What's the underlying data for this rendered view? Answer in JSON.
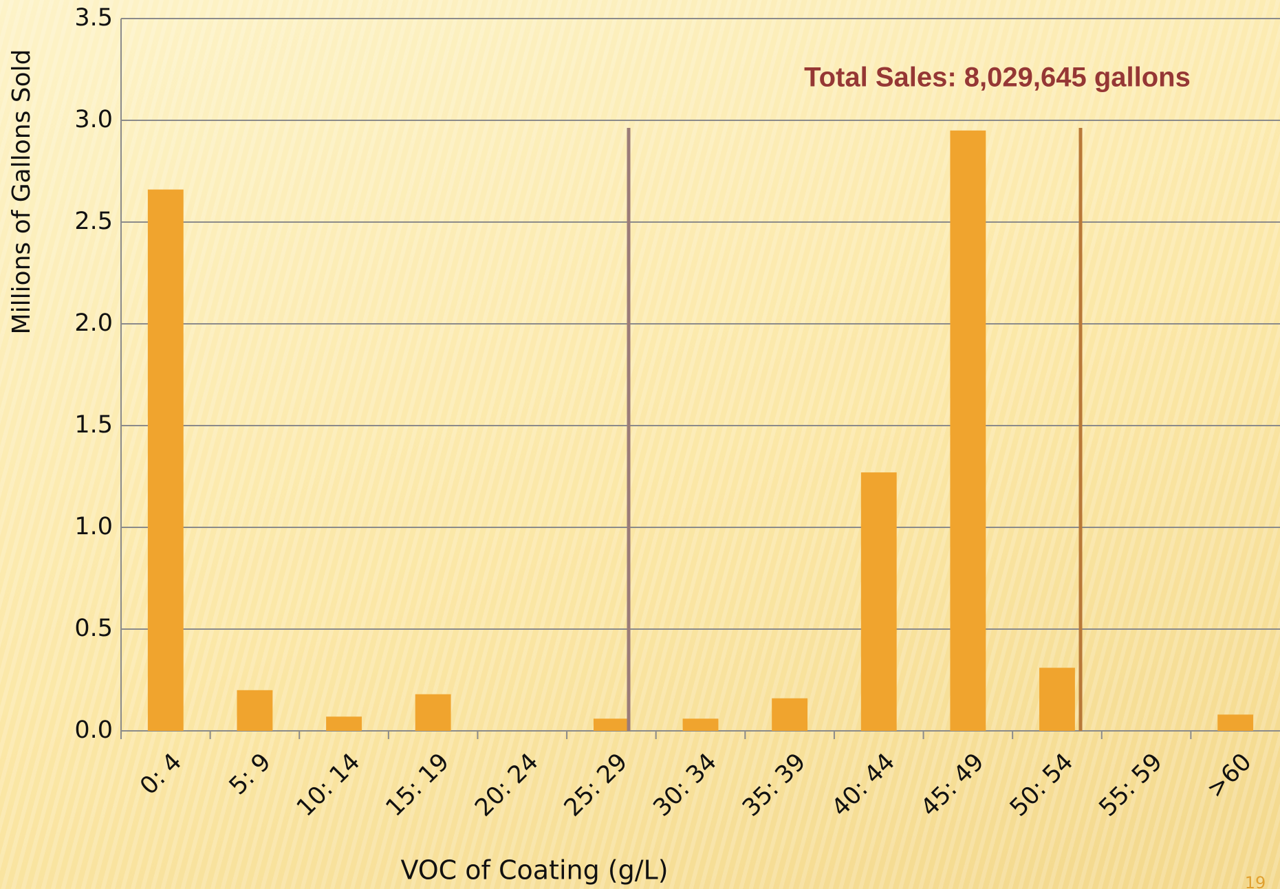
{
  "chart_data": {
    "type": "bar",
    "y_axis_label": "Millions of Gallons  Sold",
    "x_axis_label": "VOC of Coating (g/L)",
    "annotation": "Total Sales: 8,029,645 gallons",
    "page_number": "19",
    "categories": [
      "0: 4",
      "5: 9",
      "10: 14",
      "15: 19",
      "20: 24",
      "25: 29",
      "30: 34",
      "35: 39",
      "40: 44",
      "45: 49",
      "50: 54",
      "55: 59",
      ">60"
    ],
    "values": [
      2.66,
      0.2,
      0.07,
      0.18,
      0,
      0.06,
      0.06,
      0.16,
      1.27,
      2.95,
      0.31,
      0,
      0.08
    ],
    "color": "#f0a42e",
    "ylim": [
      0,
      3.5
    ],
    "yticks": [
      {
        "value": 0,
        "label": "0.0"
      },
      0.5,
      {
        "value": 1,
        "label": "1.0"
      },
      1.5,
      {
        "value": 2,
        "label": "2.0"
      },
      2.5,
      {
        "value": 3,
        "label": "3.0"
      },
      3.5
    ],
    "grid": true
  }
}
